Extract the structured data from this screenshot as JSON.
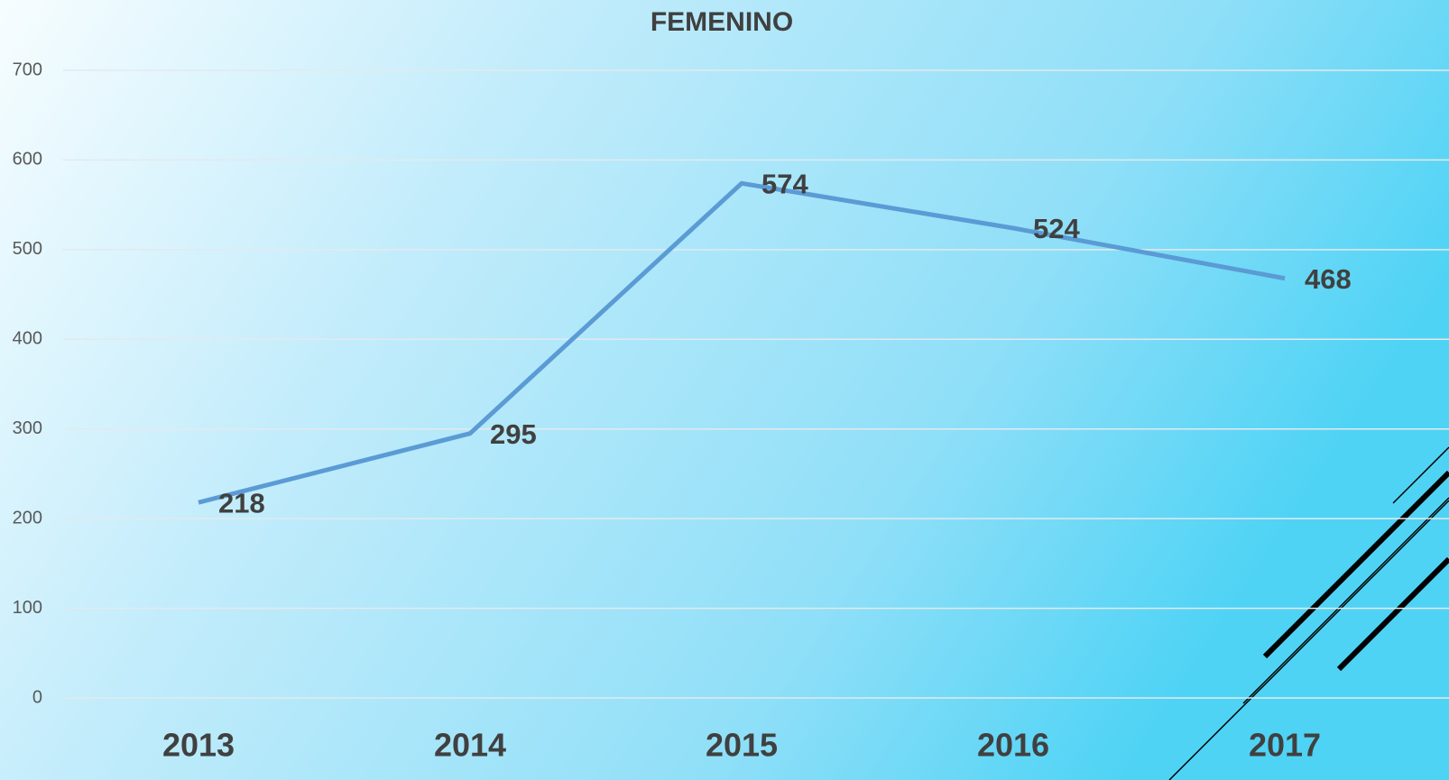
{
  "chart_data": {
    "type": "line",
    "title": "FEMENINO",
    "categories": [
      "2013",
      "2014",
      "2015",
      "2016",
      "2017"
    ],
    "series": [
      {
        "name": "FEMENINO",
        "color": "#5b9bd5",
        "values": [
          218,
          295,
          574,
          524,
          468
        ]
      }
    ],
    "ylim": [
      0,
      700
    ],
    "yticks": [
      0,
      100,
      200,
      300,
      400,
      500,
      600,
      700
    ],
    "grid": true
  }
}
